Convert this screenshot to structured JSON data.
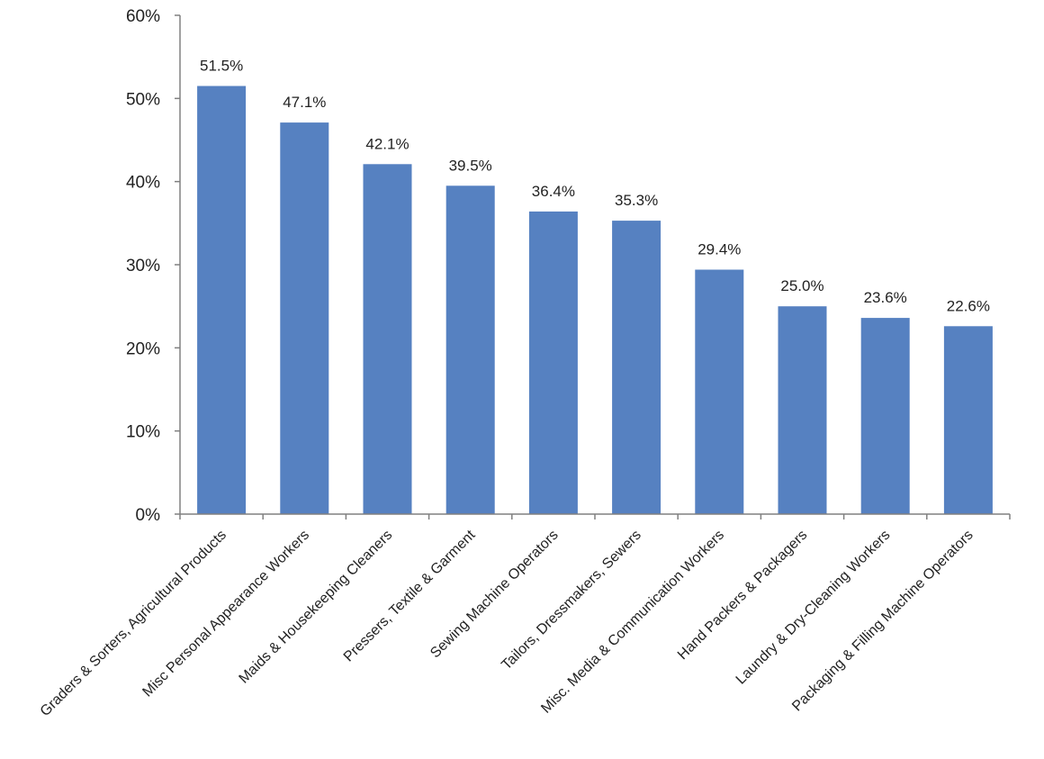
{
  "chart_data": {
    "type": "bar",
    "categories": [
      "Graders & Sorters, Agricultural Products",
      "Misc Personal Appearance Workers",
      "Maids & Housekeeping Cleaners",
      "Pressers, Textile & Garment",
      "Sewing Machine Operators",
      "Tailors, Dressmakers, Sewers",
      "Misc. Media & Communication Workers",
      "Hand Packers & Packagers",
      "Laundry & Dry-Cleaning Workers",
      "Packaging & Filling Machine Operators"
    ],
    "values": [
      51.5,
      47.1,
      42.1,
      39.5,
      36.4,
      35.3,
      29.4,
      25.0,
      23.6,
      22.6
    ],
    "data_labels": [
      "51.5%",
      "47.1%",
      "42.1%",
      "39.5%",
      "36.4%",
      "35.3%",
      "29.4%",
      "25.0%",
      "23.6%",
      "22.6%"
    ],
    "ylim": [
      0,
      60
    ],
    "yticks": [
      0,
      10,
      20,
      30,
      40,
      50,
      60
    ],
    "ytick_labels": [
      "0%",
      "10%",
      "20%",
      "30%",
      "40%",
      "50%",
      "60%"
    ],
    "bar_color": "#5681c1",
    "axis_color": "#808080",
    "grid": false,
    "legend": "none"
  }
}
